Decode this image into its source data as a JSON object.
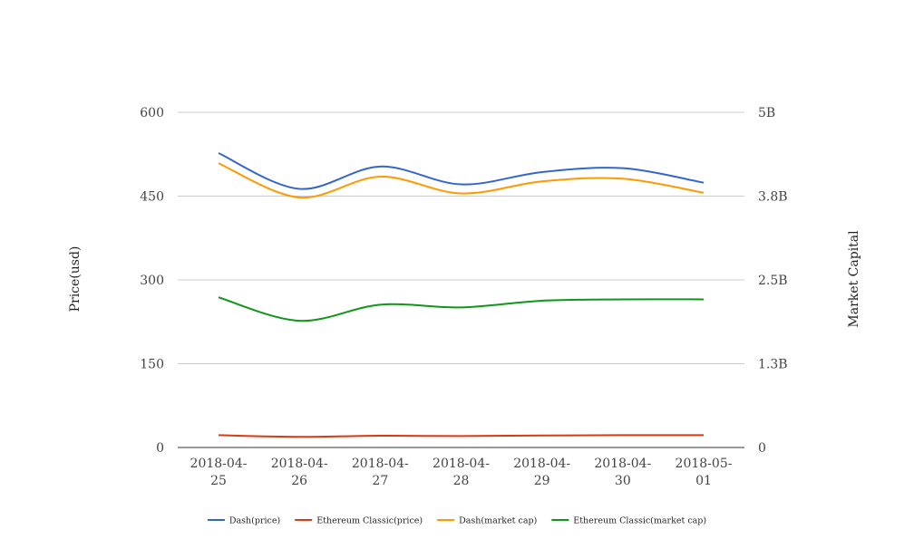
{
  "chart_data": {
    "type": "line",
    "title": "",
    "xlabel": "",
    "ylabel": "Price(usd)",
    "y2label": "Market Capital",
    "categories": [
      [
        "2018-04-",
        "25"
      ],
      [
        "2018-04-",
        "26"
      ],
      [
        "2018-04-",
        "27"
      ],
      [
        "2018-04-",
        "28"
      ],
      [
        "2018-04-",
        "29"
      ],
      [
        "2018-04-",
        "30"
      ],
      [
        "2018-05-",
        "01"
      ]
    ],
    "ylim": [
      0,
      600
    ],
    "y_ticks": [
      0,
      150,
      300,
      450,
      600
    ],
    "y_tick_labels": [
      "0",
      "150",
      "300",
      "450",
      "600"
    ],
    "y2lim": [
      0,
      5000000000
    ],
    "y2_ticks": [
      0,
      1250000000,
      2500000000,
      3750000000,
      5000000000
    ],
    "y2_tick_labels": [
      "0",
      "1.3B",
      "2.5B",
      "3.8B",
      "5B"
    ],
    "grid": true,
    "legend_position": "bottom",
    "series": [
      {
        "name": "Dash(price)",
        "axis": "left",
        "color": "#3366cc",
        "values": [
          527,
          463,
          503,
          471,
          493,
          500,
          474
        ]
      },
      {
        "name": "Ethereum Classic(price)",
        "axis": "left",
        "color": "#dc3912",
        "values": [
          22,
          19,
          21,
          20.5,
          21.5,
          22,
          22
        ]
      },
      {
        "name": "Dash(market cap)",
        "axis": "right",
        "color": "#ff9900",
        "values": [
          4240000000,
          3730000000,
          4040000000,
          3790000000,
          3970000000,
          4010000000,
          3800000000
        ]
      },
      {
        "name": "Ethereum Classic(market cap)",
        "axis": "right",
        "color": "#109618",
        "values": [
          2240000000,
          1890000000,
          2130000000,
          2090000000,
          2190000000,
          2210000000,
          2210000000
        ]
      }
    ]
  }
}
